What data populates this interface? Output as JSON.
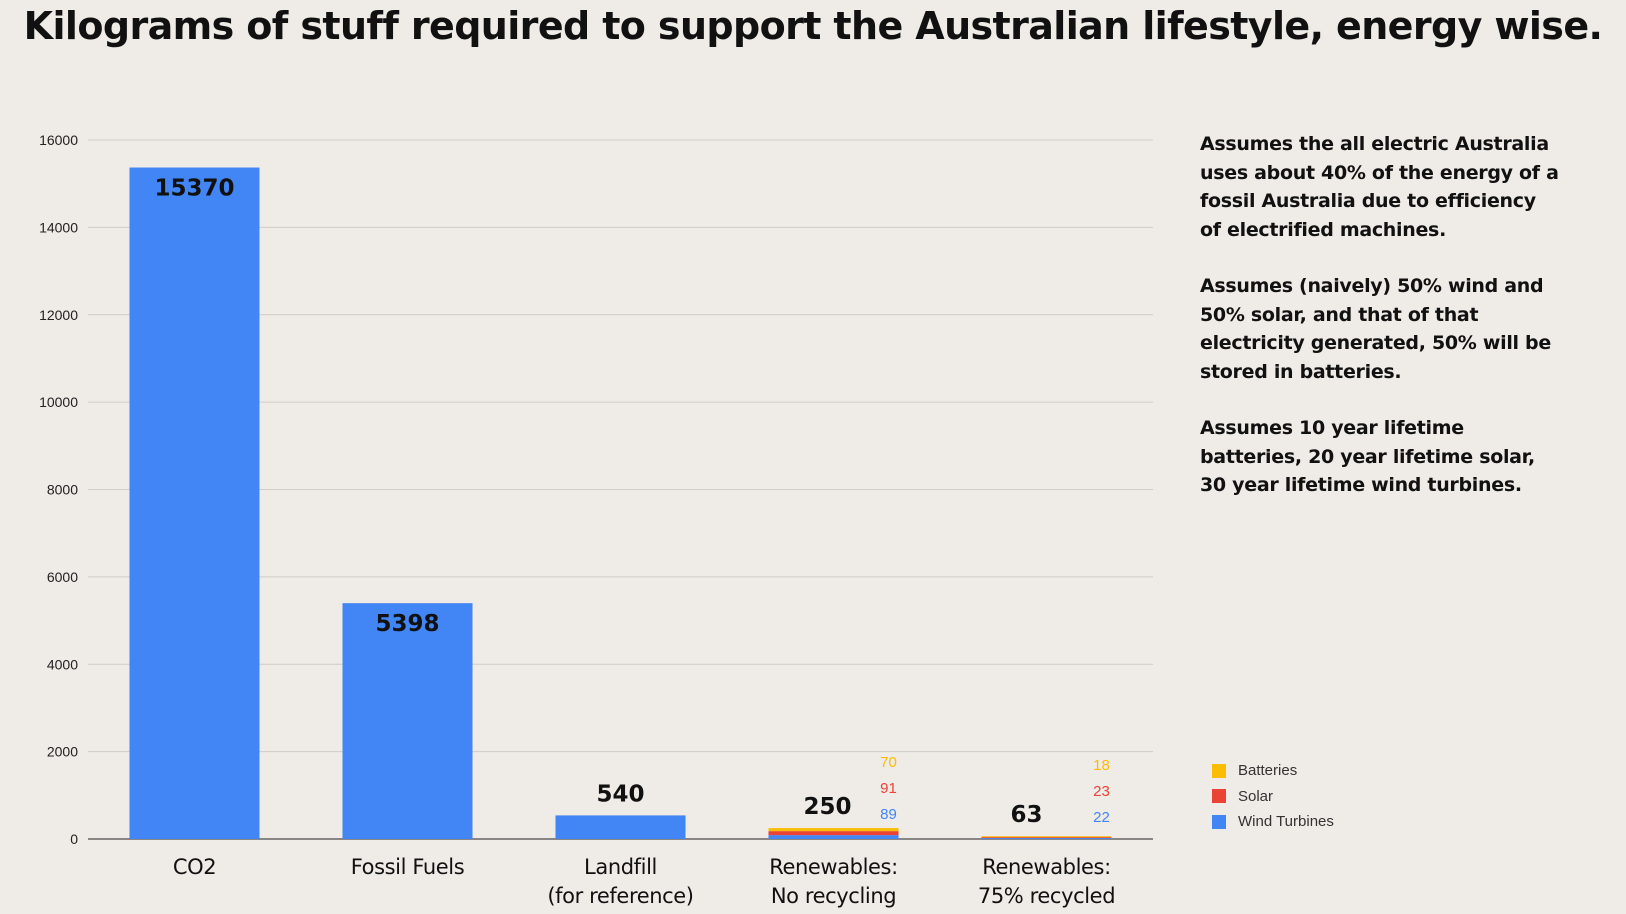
{
  "title": "Kilograms of stuff required to support the Australian lifestyle, energy wise.",
  "notes": [
    "Assumes the all electric Australia uses about 40% of the energy of a fossil Australia due to efficiency of electrified machines.",
    "Assumes (naively) 50% wind and 50% solar, and that of that electricity generated, 50% will be stored in batteries.",
    "Assumes 10 year lifetime batteries, 20 year lifetime solar, 30 year lifetime wind turbines."
  ],
  "colors": {
    "blue": "#4285f4",
    "red": "#ea4335",
    "yellow": "#fbbc04"
  },
  "chart_data": {
    "type": "bar",
    "stacked": true,
    "categories": [
      [
        "CO2"
      ],
      [
        "Fossil Fuels"
      ],
      [
        "Landfill",
        "(for reference)"
      ],
      [
        "Renewables:",
        "No recycling"
      ],
      [
        "Renewables:",
        "75% recycled"
      ]
    ],
    "totals": [
      "15370",
      "5398",
      "540",
      "250",
      "63"
    ],
    "series": [
      {
        "name": "Wind Turbines",
        "color": "#4285f4",
        "values": [
          15370,
          5398,
          540,
          89,
          22
        ]
      },
      {
        "name": "Solar",
        "color": "#ea4335",
        "values": [
          0,
          0,
          0,
          91,
          23
        ]
      },
      {
        "name": "Batteries",
        "color": "#fbbc04",
        "values": [
          0,
          0,
          0,
          70,
          18
        ]
      }
    ],
    "segment_labels": [
      [
        null,
        null,
        null,
        {
          "Batteries": "70",
          "Solar": "91",
          "Wind Turbines": "89"
        },
        {
          "Batteries": "18",
          "Solar": "23",
          "Wind Turbines": "22"
        }
      ]
    ],
    "legend": [
      "Batteries",
      "Solar",
      "Wind Turbines"
    ],
    "legend_position": "right",
    "yticks": [
      "0",
      "2000",
      "4000",
      "6000",
      "8000",
      "10000",
      "12000",
      "14000",
      "16000"
    ],
    "ylim": [
      0,
      16000
    ],
    "grid": true,
    "xlabel": "",
    "ylabel": ""
  }
}
